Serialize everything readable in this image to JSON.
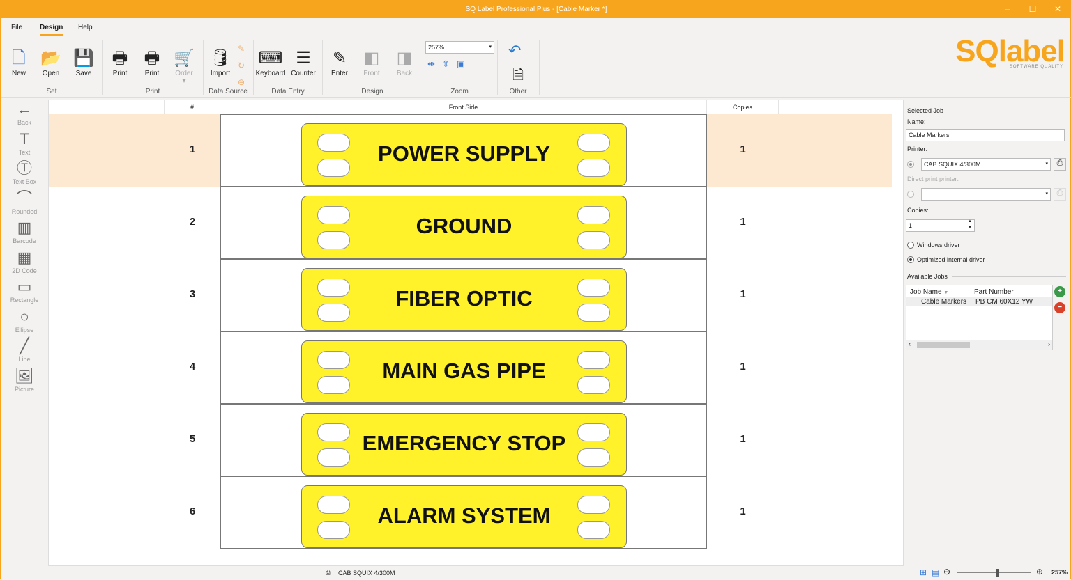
{
  "window": {
    "title": "SQ Label Professional Plus - [Cable Marker *]",
    "minimize": "–",
    "maximize": "☐",
    "close": "✕"
  },
  "menu": {
    "tabs": [
      "File",
      "Design",
      "Help"
    ],
    "active": "Design"
  },
  "ribbon": {
    "buttons": [
      {
        "label": "New",
        "icon": "new-document-icon",
        "glyph": "🗋"
      },
      {
        "label": "Open",
        "icon": "folder-icon",
        "glyph": "📂"
      },
      {
        "label": "Save",
        "icon": "floppy-icon",
        "glyph": "💾"
      },
      {
        "label": "Print",
        "icon": "printer-icon",
        "glyph": "🖶"
      },
      {
        "label": "Print",
        "icon": "direct-print-icon",
        "glyph": "🖶"
      },
      {
        "label": "Order",
        "icon": "cart-icon",
        "glyph": "🛒"
      },
      {
        "label": "Import",
        "icon": "database-icon",
        "glyph": "🛢"
      },
      {
        "label": "Keyboard",
        "icon": "keyboard-icon",
        "glyph": "⌨"
      },
      {
        "label": "Counter",
        "icon": "numbered-list-icon",
        "glyph": "☰"
      },
      {
        "label": "Enter",
        "icon": "pencil-ruler-icon",
        "glyph": "✎"
      },
      {
        "label": "Front",
        "icon": "front-side-icon",
        "glyph": "◧"
      },
      {
        "label": "Back",
        "icon": "back-side-icon",
        "glyph": "◨"
      },
      {
        "label": "Other",
        "icon": "export-document-icon",
        "glyph": "🗎"
      }
    ],
    "groups": [
      "Set",
      "Print",
      "Data Source",
      "Data Entry",
      "Design",
      "Zoom",
      "Other"
    ],
    "zoom_value": "257%"
  },
  "logo": {
    "text": "SQlabel",
    "tagline": "SOFTWARE QUALITY"
  },
  "tools": [
    {
      "label": "Back",
      "glyph": "←"
    },
    {
      "label": "Text",
      "glyph": "T"
    },
    {
      "label": "Text Box",
      "glyph": "Ⓣ"
    },
    {
      "label": "Rounded",
      "glyph": "⌒"
    },
    {
      "label": "Barcode",
      "glyph": "▥"
    },
    {
      "label": "2D Code",
      "glyph": "▦"
    },
    {
      "label": "Rectangle",
      "glyph": "▭"
    },
    {
      "label": "Ellipse",
      "glyph": "○"
    },
    {
      "label": "Line",
      "glyph": "╱"
    },
    {
      "label": "Picture",
      "glyph": "🖼"
    }
  ],
  "grid": {
    "headers": {
      "num": "#",
      "front": "Front Side",
      "copies": "Copies"
    },
    "rows": [
      {
        "num": "1",
        "text": "POWER SUPPLY",
        "copies": "1"
      },
      {
        "num": "2",
        "text": "GROUND",
        "copies": "1"
      },
      {
        "num": "3",
        "text": "FIBER OPTIC",
        "copies": "1"
      },
      {
        "num": "4",
        "text": "MAIN GAS PIPE",
        "copies": "1"
      },
      {
        "num": "5",
        "text": "EMERGENCY STOP",
        "copies": "1"
      },
      {
        "num": "6",
        "text": "ALARM SYSTEM",
        "copies": "1"
      }
    ],
    "label_color": "#fff12a"
  },
  "panel": {
    "selected_job": "Selected Job",
    "name_label": "Name:",
    "name_value": "Cable Markers",
    "printer_label": "Printer:",
    "printer_value": "CAB SQUIX 4/300M",
    "direct_label": "Direct print printer:",
    "direct_value": "",
    "copies_label": "Copies:",
    "copies_value": "1",
    "driver_windows": "Windows driver",
    "driver_internal": "Optimized internal driver",
    "driver_selected": "Optimized internal driver",
    "available_jobs": "Available Jobs",
    "jobs_headers": [
      "Job Name",
      "Part Number"
    ],
    "jobs": [
      {
        "name": "Cable Markers",
        "part": "PB CM 60X12 YW"
      }
    ]
  },
  "status": {
    "printer": "CAB SQUIX 4/300M",
    "zoom": "257%",
    "zoom_slider_fraction": 0.55
  }
}
